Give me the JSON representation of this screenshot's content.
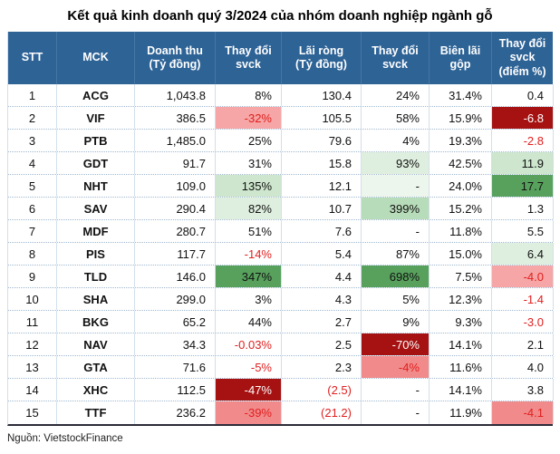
{
  "title": "Kết quả kinh doanh quý 3/2024 của nhóm doanh nghiệp ngành gỗ",
  "source": "Nguồn: VietstockFinance",
  "colors": {
    "header_bg": "#2E6396",
    "header_text": "#FFFFFF",
    "neg_text": "#E02020",
    "red_fill_light": "#F6A6A6",
    "red_fill_medium": "#F18A8A",
    "red_fill_dark": "#A61212",
    "green_fill_faint": "#EDF6ED",
    "green_fill_light": "#DFEFDF",
    "green_fill_medium": "#CDE6CD",
    "green_fill_strong": "#B7DCB9",
    "green_fill_dark": "#57A15D"
  },
  "table": {
    "headers": [
      "STT",
      "MCK",
      "Doanh thu\n(Tỷ đồng)",
      "Thay đổi\nsvck",
      "Lãi ròng\n(Tỷ đồng)",
      "Thay đổi\nsvck",
      "Biên lãi\ngộp",
      "Thay đổi\nsvck\n(điểm %)"
    ],
    "rows": [
      {
        "cells": [
          {
            "v": "1"
          },
          {
            "v": "ACG"
          },
          {
            "v": "1,043.8"
          },
          {
            "v": "8%"
          },
          {
            "v": "130.4"
          },
          {
            "v": "24%"
          },
          {
            "v": "31.4%"
          },
          {
            "v": "0.4"
          }
        ]
      },
      {
        "cells": [
          {
            "v": "2"
          },
          {
            "v": "VIF"
          },
          {
            "v": "386.5"
          },
          {
            "v": "-32%",
            "c": "neg bg-r1"
          },
          {
            "v": "105.5"
          },
          {
            "v": "58%"
          },
          {
            "v": "15.9%"
          },
          {
            "v": "-6.8",
            "c": "wht bg-r3"
          }
        ]
      },
      {
        "cells": [
          {
            "v": "3"
          },
          {
            "v": "PTB"
          },
          {
            "v": "1,485.0"
          },
          {
            "v": "25%"
          },
          {
            "v": "79.6"
          },
          {
            "v": "4%"
          },
          {
            "v": "19.3%"
          },
          {
            "v": "-2.8",
            "c": "neg"
          }
        ]
      },
      {
        "cells": [
          {
            "v": "4"
          },
          {
            "v": "GDT"
          },
          {
            "v": "91.7"
          },
          {
            "v": "31%"
          },
          {
            "v": "15.8"
          },
          {
            "v": "93%",
            "c": "bg-g1"
          },
          {
            "v": "42.5%"
          },
          {
            "v": "11.9",
            "c": "bg-g2"
          }
        ]
      },
      {
        "cells": [
          {
            "v": "5"
          },
          {
            "v": "NHT"
          },
          {
            "v": "109.0"
          },
          {
            "v": "135%",
            "c": "bg-g2"
          },
          {
            "v": "12.1"
          },
          {
            "v": "-",
            "c": "bg-g0"
          },
          {
            "v": "24.0%"
          },
          {
            "v": "17.7",
            "c": "bg-g4"
          }
        ]
      },
      {
        "cells": [
          {
            "v": "6"
          },
          {
            "v": "SAV"
          },
          {
            "v": "290.4"
          },
          {
            "v": "82%",
            "c": "bg-g1"
          },
          {
            "v": "10.7"
          },
          {
            "v": "399%",
            "c": "bg-g3"
          },
          {
            "v": "15.2%"
          },
          {
            "v": "1.3"
          }
        ]
      },
      {
        "cells": [
          {
            "v": "7"
          },
          {
            "v": "MDF"
          },
          {
            "v": "280.7"
          },
          {
            "v": "51%"
          },
          {
            "v": "7.6"
          },
          {
            "v": "-"
          },
          {
            "v": "11.8%"
          },
          {
            "v": "5.5"
          }
        ]
      },
      {
        "cells": [
          {
            "v": "8"
          },
          {
            "v": "PIS"
          },
          {
            "v": "117.7"
          },
          {
            "v": "-14%",
            "c": "neg"
          },
          {
            "v": "5.4"
          },
          {
            "v": "87%"
          },
          {
            "v": "15.0%"
          },
          {
            "v": "6.4",
            "c": "bg-g1"
          }
        ]
      },
      {
        "cells": [
          {
            "v": "9"
          },
          {
            "v": "TLD"
          },
          {
            "v": "146.0"
          },
          {
            "v": "347%",
            "c": "bg-g4"
          },
          {
            "v": "4.4"
          },
          {
            "v": "698%",
            "c": "bg-g4"
          },
          {
            "v": "7.5%"
          },
          {
            "v": "-4.0",
            "c": "neg bg-r1"
          }
        ]
      },
      {
        "cells": [
          {
            "v": "10"
          },
          {
            "v": "SHA"
          },
          {
            "v": "299.0"
          },
          {
            "v": "3%"
          },
          {
            "v": "4.3"
          },
          {
            "v": "5%"
          },
          {
            "v": "12.3%"
          },
          {
            "v": "-1.4",
            "c": "neg"
          }
        ]
      },
      {
        "cells": [
          {
            "v": "11"
          },
          {
            "v": "BKG"
          },
          {
            "v": "65.2"
          },
          {
            "v": "44%"
          },
          {
            "v": "2.7"
          },
          {
            "v": "9%"
          },
          {
            "v": "9.3%"
          },
          {
            "v": "-3.0",
            "c": "neg"
          }
        ]
      },
      {
        "cells": [
          {
            "v": "12"
          },
          {
            "v": "NAV"
          },
          {
            "v": "34.3"
          },
          {
            "v": "-0.03%",
            "c": "neg"
          },
          {
            "v": "2.5"
          },
          {
            "v": "-70%",
            "c": "wht bg-r3"
          },
          {
            "v": "14.1%"
          },
          {
            "v": "2.1"
          }
        ]
      },
      {
        "cells": [
          {
            "v": "13"
          },
          {
            "v": "GTA"
          },
          {
            "v": "71.6"
          },
          {
            "v": "-5%",
            "c": "neg"
          },
          {
            "v": "2.3"
          },
          {
            "v": "-4%",
            "c": "neg bg-r2"
          },
          {
            "v": "11.6%"
          },
          {
            "v": "4.0"
          }
        ]
      },
      {
        "cells": [
          {
            "v": "14"
          },
          {
            "v": "XHC"
          },
          {
            "v": "112.5"
          },
          {
            "v": "-47%",
            "c": "wht bg-r3"
          },
          {
            "v": "(2.5)",
            "c": "neg"
          },
          {
            "v": "-"
          },
          {
            "v": "14.1%"
          },
          {
            "v": "3.8"
          }
        ]
      },
      {
        "cells": [
          {
            "v": "15"
          },
          {
            "v": "TTF"
          },
          {
            "v": "236.2"
          },
          {
            "v": "-39%",
            "c": "neg bg-r2"
          },
          {
            "v": "(21.2)",
            "c": "neg"
          },
          {
            "v": "-"
          },
          {
            "v": "11.9%"
          },
          {
            "v": "-4.1",
            "c": "neg bg-r2"
          }
        ]
      }
    ]
  },
  "chart_data": {
    "type": "table",
    "title": "Kết quả kinh doanh quý 3/2024 của nhóm doanh nghiệp ngành gỗ",
    "columns": [
      "STT",
      "MCK",
      "Doanh thu (Tỷ đồng)",
      "Thay đổi svck (%)",
      "Lãi ròng (Tỷ đồng)",
      "Thay đổi svck (%)",
      "Biên lãi gộp (%)",
      "Thay đổi svck (điểm %)"
    ],
    "rows": [
      [
        1,
        "ACG",
        1043.8,
        8,
        130.4,
        24,
        31.4,
        0.4
      ],
      [
        2,
        "VIF",
        386.5,
        -32,
        105.5,
        58,
        15.9,
        -6.8
      ],
      [
        3,
        "PTB",
        1485.0,
        25,
        79.6,
        4,
        19.3,
        -2.8
      ],
      [
        4,
        "GDT",
        91.7,
        31,
        15.8,
        93,
        42.5,
        11.9
      ],
      [
        5,
        "NHT",
        109.0,
        135,
        12.1,
        null,
        24.0,
        17.7
      ],
      [
        6,
        "SAV",
        290.4,
        82,
        10.7,
        399,
        15.2,
        1.3
      ],
      [
        7,
        "MDF",
        280.7,
        51,
        7.6,
        null,
        11.8,
        5.5
      ],
      [
        8,
        "PIS",
        117.7,
        -14,
        5.4,
        87,
        15.0,
        6.4
      ],
      [
        9,
        "TLD",
        146.0,
        347,
        4.4,
        698,
        7.5,
        -4.0
      ],
      [
        10,
        "SHA",
        299.0,
        3,
        4.3,
        5,
        12.3,
        -1.4
      ],
      [
        11,
        "BKG",
        65.2,
        44,
        2.7,
        9,
        9.3,
        -3.0
      ],
      [
        12,
        "NAV",
        34.3,
        -0.03,
        2.5,
        -70,
        14.1,
        2.1
      ],
      [
        13,
        "GTA",
        71.6,
        -5,
        2.3,
        -4,
        11.6,
        4.0
      ],
      [
        14,
        "XHC",
        112.5,
        -47,
        -2.5,
        null,
        14.1,
        3.8
      ],
      [
        15,
        "TTF",
        236.2,
        -39,
        -21.2,
        null,
        11.9,
        -4.1
      ]
    ],
    "source": "VietstockFinance"
  }
}
